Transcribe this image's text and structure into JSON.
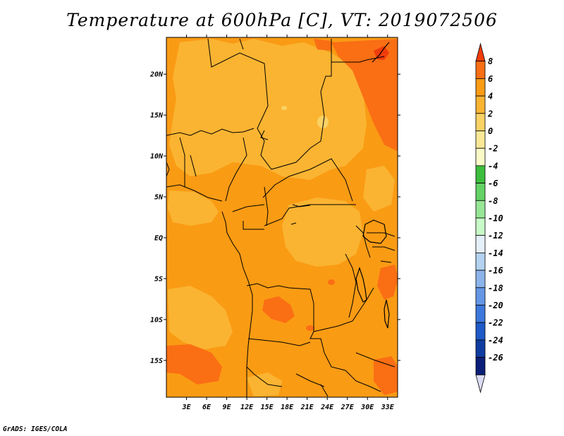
{
  "title": "Temperature at 600hPa [C], VT: 2019072506",
  "credit": "GrADS: IGES/COLA",
  "map": {
    "lat_range": [
      -19.5,
      24.5
    ],
    "lon_range": [
      0,
      34.5
    ],
    "lat_labels": [
      {
        "value": 20,
        "label": "20N"
      },
      {
        "value": 15,
        "label": "15N"
      },
      {
        "value": 10,
        "label": "10N"
      },
      {
        "value": 5,
        "label": "5N"
      },
      {
        "value": 0,
        "label": "EQ"
      },
      {
        "value": -5,
        "label": "5S"
      },
      {
        "value": -10,
        "label": "10S"
      },
      {
        "value": -15,
        "label": "15S"
      }
    ],
    "lon_labels": [
      {
        "value": 3,
        "label": "3E"
      },
      {
        "value": 6,
        "label": "6E"
      },
      {
        "value": 9,
        "label": "9E"
      },
      {
        "value": 12,
        "label": "12E"
      },
      {
        "value": 15,
        "label": "15E"
      },
      {
        "value": 18,
        "label": "18E"
      },
      {
        "value": 21,
        "label": "21E"
      },
      {
        "value": 24,
        "label": "24E"
      },
      {
        "value": 27,
        "label": "27E"
      },
      {
        "value": 30,
        "label": "30E"
      },
      {
        "value": 33,
        "label": "33E"
      }
    ]
  },
  "colorbar": {
    "labels": [
      "8",
      "6",
      "4",
      "2",
      "0",
      "-2",
      "-4",
      "-6",
      "-8",
      "-10",
      "-12",
      "-14",
      "-16",
      "-18",
      "-20",
      "-22",
      "-24",
      "-26"
    ],
    "colors": [
      "#f03c0a",
      "#fa6e14",
      "#fa9b14",
      "#fab432",
      "#fad264",
      "#fae896",
      "#fafac8",
      "#3cbe3c",
      "#64d264",
      "#96e696",
      "#c8fac8",
      "#e6f0fa",
      "#b4d2f0",
      "#8cb4eb",
      "#6496e6",
      "#3c78dc",
      "#1e5ac8",
      "#0f3ca0",
      "#0a1e78",
      "#dcdcf5"
    ]
  },
  "palette": {
    "warm4_6": "#fa6e14",
    "warm2_4": "#fa9b14",
    "warm0_2": "#fab432",
    "warmm2_0": "#fad264",
    "warm6_8": "#f03c0a"
  }
}
